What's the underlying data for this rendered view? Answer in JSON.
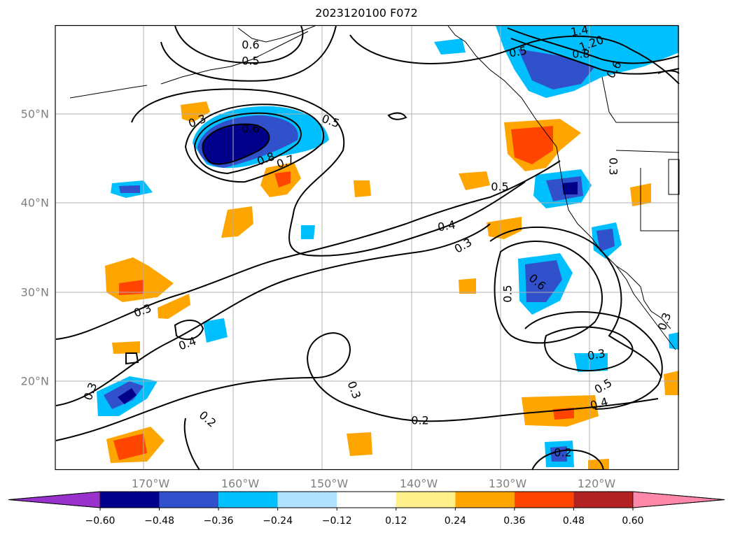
{
  "title": "2023120100 F072",
  "lon_labels": [
    "170°W",
    "160°W",
    "150°W",
    "140°W",
    "130°W",
    "120°W"
  ],
  "lat_labels": [
    "50°N",
    "40°N",
    "30°N",
    "20°N"
  ],
  "colorbar": {
    "ticks": [
      "−0.60",
      "−0.48",
      "−0.36",
      "−0.24",
      "−0.12",
      "0.12",
      "0.24",
      "0.36",
      "0.48",
      "0.60"
    ],
    "colors": [
      "#9932cc",
      "#00008b",
      "#3050cc",
      "#00bfff",
      "#b0e2ff",
      "#ffffff",
      "#fff08c",
      "#ffa500",
      "#ff4500",
      "#b22222",
      "#ff88aa"
    ]
  },
  "contour_labels": [
    "0.6",
    "0.5",
    "1.4",
    "1.20",
    "0.5",
    "0.8",
    "0.6",
    "0.3",
    "0.6",
    "0.5",
    "0.8",
    "0.7",
    "0.5",
    "0.3",
    "0.4",
    "0.3",
    "0.3",
    "0.5",
    "0.6",
    "0.3",
    "0.4",
    "0.3",
    "0.3",
    "0.5",
    "0.4",
    "0.3",
    "0.2",
    "0.2",
    "0.2"
  ]
}
